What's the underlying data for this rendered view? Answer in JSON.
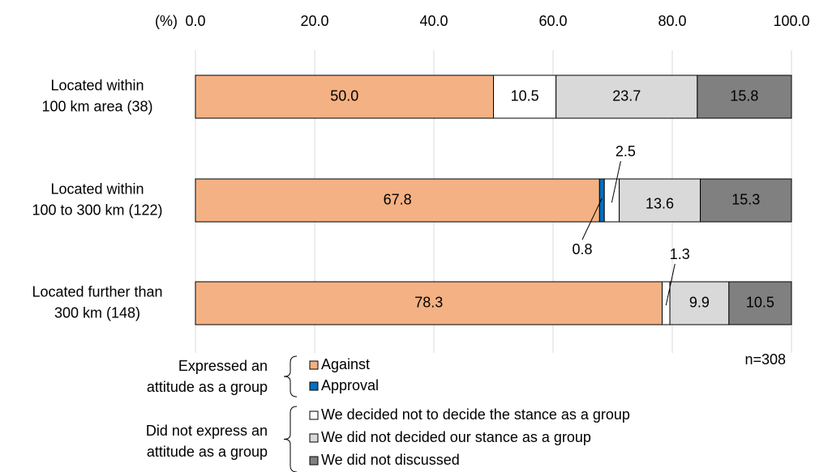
{
  "chart_data": {
    "type": "bar",
    "orientation": "horizontal",
    "stacked": true,
    "unit_label": "(%)",
    "xlim": [
      0,
      100
    ],
    "xticks": [
      "0.0",
      "20.0",
      "40.0",
      "60.0",
      "80.0",
      "100.0"
    ],
    "grid": true,
    "categories": [
      "Located within\n100 km area (38)",
      "Located within\n100 to 300 km (122)",
      "Located further than\n300 km (148)"
    ],
    "series": [
      {
        "name": "Against",
        "color": "#f4b183",
        "values": [
          50.0,
          67.8,
          78.3
        ],
        "labels": [
          "50.0",
          "67.8",
          "78.3"
        ]
      },
      {
        "name": "Approval",
        "color": "#0070c0",
        "values": [
          0,
          0.8,
          0
        ],
        "labels": [
          "",
          "0.8",
          ""
        ]
      },
      {
        "name": "We decided not to decide the stance as a group",
        "color": "#ffffff",
        "values": [
          10.5,
          2.5,
          1.3
        ],
        "labels": [
          "10.5",
          "2.5",
          "1.3"
        ]
      },
      {
        "name": "We did not decided our stance as a group",
        "color": "#d9d9d9",
        "values": [
          23.7,
          13.6,
          9.9
        ],
        "labels": [
          "23.7",
          "13.6",
          "9.9"
        ]
      },
      {
        "name": "We did not discussed",
        "color": "#808080",
        "values": [
          15.8,
          15.3,
          10.5
        ],
        "labels": [
          "15.8",
          "15.3",
          "10.5"
        ]
      }
    ],
    "sample_note": "n=308",
    "legend_groups": [
      {
        "label": "Expressed an\nattitude as a group",
        "series": [
          0,
          1
        ]
      },
      {
        "label": "Did not express an\nattitude as a group",
        "series": [
          2,
          3,
          4
        ]
      }
    ]
  }
}
